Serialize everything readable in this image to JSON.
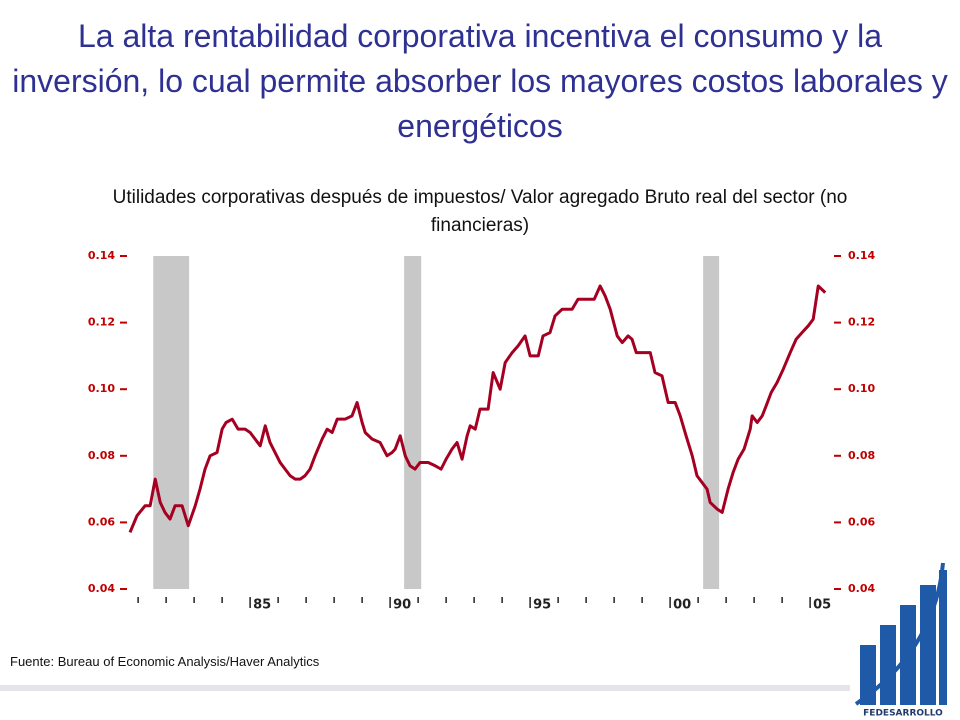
{
  "title": "La alta rentabilidad corporativa incentiva el consumo y la inversión, lo cual permite absorber los mayores costos laborales y energéticos",
  "source": "Fuente: Bureau of Economic Analysis/Haver Analytics",
  "logo": "FEDESARROLLO",
  "chart_data": {
    "type": "line",
    "title": "Utilidades corporativas después de impuestos/ Valor agregado Bruto real del sector (no financieras)",
    "x": [
      1980.71,
      1980.96,
      1981.25,
      1981.43,
      1981.61,
      1981.79,
      1981.96,
      1982.14,
      1982.32,
      1982.57,
      1982.79,
      1983.04,
      1983.21,
      1983.39,
      1983.57,
      1983.82,
      1984.0,
      1984.14,
      1984.36,
      1984.57,
      1984.82,
      1985.0,
      1985.18,
      1985.36,
      1985.54,
      1985.71,
      1985.89,
      1986.07,
      1986.25,
      1986.43,
      1986.61,
      1986.79,
      1986.96,
      1987.14,
      1987.32,
      1987.57,
      1987.75,
      1987.93,
      1988.11,
      1988.39,
      1988.64,
      1988.82,
      1989.0,
      1989.11,
      1989.36,
      1989.64,
      1989.89,
      1990.07,
      1990.18,
      1990.36,
      1990.54,
      1990.71,
      1990.89,
      1991.07,
      1991.36,
      1991.61,
      1991.82,
      1992.0,
      1992.21,
      1992.39,
      1992.57,
      1992.75,
      1992.86,
      1993.04,
      1993.21,
      1993.5,
      1993.68,
      1993.93,
      1994.11,
      1994.36,
      1994.57,
      1994.82,
      1995.0,
      1995.29,
      1995.46,
      1995.71,
      1995.89,
      1996.14,
      1996.32,
      1996.5,
      1996.71,
      1997.04,
      1997.29,
      1997.5,
      1997.68,
      1997.86,
      1998.11,
      1998.29,
      1998.5,
      1998.64,
      1998.79,
      1999.0,
      1999.29,
      1999.46,
      1999.71,
      1999.93,
      2000.18,
      2000.36,
      2000.57,
      2000.79,
      2000.96,
      2001.14,
      2001.32,
      2001.43,
      2001.68,
      2001.86,
      2002.07,
      2002.25,
      2002.43,
      2002.64,
      2002.86,
      2002.93,
      2003.11,
      2003.29,
      2003.43,
      2003.61,
      2003.82,
      2004.04,
      2004.29,
      2004.5,
      2004.71,
      2004.93,
      2005.11,
      2005.29,
      2005.54
    ],
    "series": [
      {
        "color": "#a50021",
        "values": [
          0.057,
          0.062,
          0.065,
          0.065,
          0.073,
          0.066,
          0.063,
          0.061,
          0.065,
          0.065,
          0.059,
          0.065,
          0.07,
          0.076,
          0.08,
          0.081,
          0.088,
          0.09,
          0.091,
          0.088,
          0.088,
          0.087,
          0.085,
          0.083,
          0.089,
          0.084,
          0.081,
          0.078,
          0.076,
          0.074,
          0.073,
          0.073,
          0.074,
          0.076,
          0.08,
          0.085,
          0.088,
          0.087,
          0.091,
          0.091,
          0.092,
          0.096,
          0.09,
          0.087,
          0.085,
          0.084,
          0.08,
          0.081,
          0.082,
          0.086,
          0.08,
          0.077,
          0.076,
          0.078,
          0.078,
          0.077,
          0.076,
          0.079,
          0.082,
          0.084,
          0.079,
          0.086,
          0.089,
          0.088,
          0.094,
          0.094,
          0.105,
          0.1,
          0.108,
          0.111,
          0.113,
          0.116,
          0.11,
          0.11,
          0.116,
          0.117,
          0.122,
          0.124,
          0.124,
          0.124,
          0.127,
          0.127,
          0.127,
          0.131,
          0.128,
          0.124,
          0.116,
          0.114,
          0.116,
          0.115,
          0.111,
          0.111,
          0.111,
          0.105,
          0.104,
          0.096,
          0.096,
          0.092,
          0.086,
          0.08,
          0.074,
          0.072,
          0.07,
          0.066,
          0.064,
          0.063,
          0.07,
          0.075,
          0.079,
          0.082,
          0.088,
          0.092,
          0.09,
          0.092,
          0.095,
          0.099,
          0.102,
          0.106,
          0.111,
          0.115,
          0.117,
          0.119,
          0.121,
          0.131,
          0.129
        ]
      }
    ],
    "shaded_regions": [
      [
        1981.54,
        1982.82
      ],
      [
        1990.5,
        1991.11
      ],
      [
        2001.18,
        2001.75
      ]
    ],
    "shade_color": "#c8c8c8",
    "xlim": [
      1980.71,
      2005.71
    ],
    "xticks": [
      {
        "value": 1985,
        "label": "85"
      },
      {
        "value": 1990,
        "label": "90"
      },
      {
        "value": 1995,
        "label": "95"
      },
      {
        "value": 2000,
        "label": "00"
      },
      {
        "value": 2005,
        "label": "05"
      }
    ],
    "xminorticks": [
      1981,
      1982,
      1983,
      1984,
      1986,
      1987,
      1988,
      1989,
      1991,
      1992,
      1993,
      1994,
      1996,
      1997,
      1998,
      1999,
      2001,
      2002,
      2003,
      2004
    ],
    "ylim": [
      0.04,
      0.14
    ],
    "yticks": [
      0.04,
      0.06,
      0.08,
      {
        "value": 0.1,
        "label": "0.10"
      },
      0.12,
      0.14
    ],
    "y2lim": [
      0.04,
      0.14
    ],
    "y2ticks": [
      0.04,
      0.06,
      0.08,
      {
        "value": 0.1,
        "label": "0.10"
      },
      0.12,
      0.14
    ],
    "tick_color": "#c00000"
  }
}
